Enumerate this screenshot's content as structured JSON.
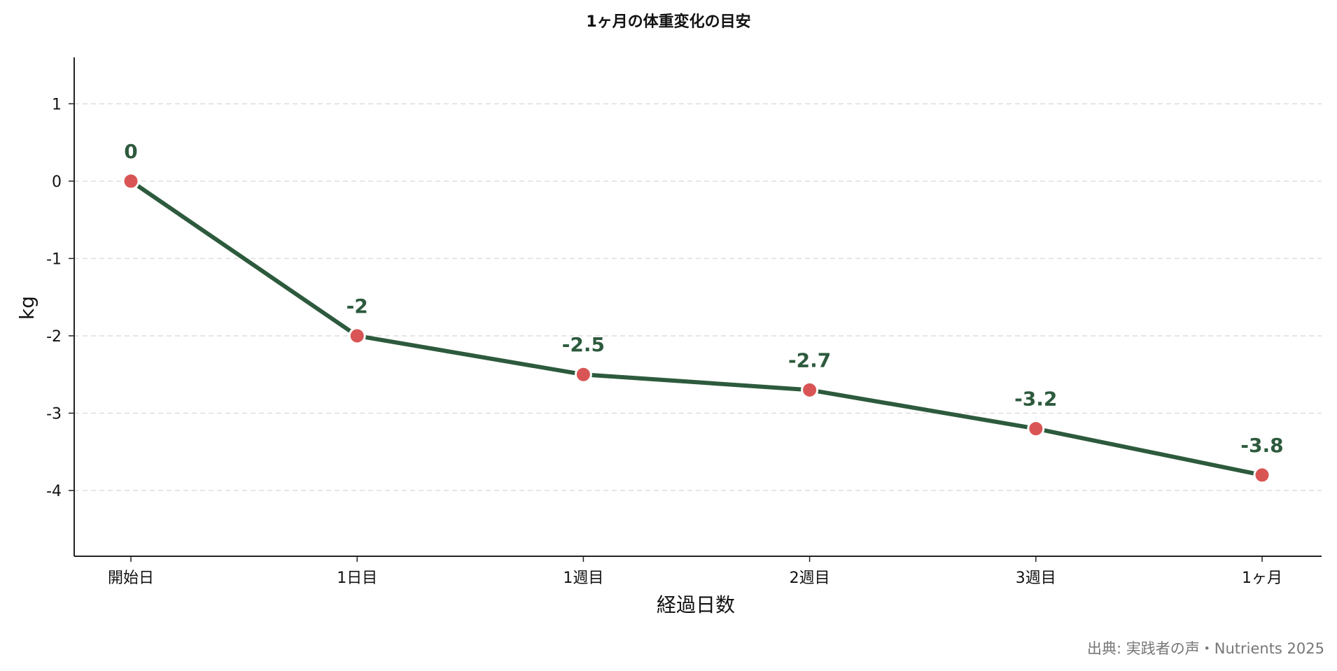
{
  "chart_data": {
    "type": "line",
    "title": "1ヶ月の体重変化の目安",
    "xlabel": "経過日数",
    "ylabel": "kg",
    "categories": [
      "開始日",
      "1日目",
      "1週目",
      "2週目",
      "3週目",
      "1ヶ月"
    ],
    "series": [
      {
        "values": [
          0,
          -2,
          -2.5,
          -2.7,
          -3.2,
          -3.8
        ],
        "data_labels": [
          "0",
          "-2",
          "-2.5",
          "-2.7",
          "-3.2",
          "-3.8"
        ],
        "line_color": "#2d5a3d",
        "marker_color": "#d95555"
      }
    ],
    "yticks": [
      1,
      0,
      -1,
      -2,
      -3,
      -4
    ],
    "ytick_labels": [
      "1",
      "0",
      "-1",
      "-2",
      "-3",
      "-4"
    ],
    "ylim": [
      -4.85,
      1.6
    ],
    "grid": "horizontal-dashed",
    "source": "出典: 実践者の声・Nutrients 2025"
  }
}
